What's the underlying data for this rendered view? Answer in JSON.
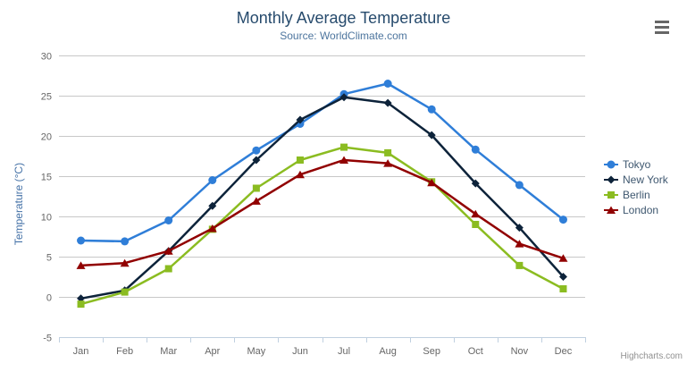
{
  "credits": "Highcharts.com",
  "chart_data": {
    "type": "line",
    "title": "Monthly Average Temperature",
    "subtitle": "Source: WorldClimate.com",
    "xlabel": "",
    "ylabel": "Temperature (°C)",
    "categories": [
      "Jan",
      "Feb",
      "Mar",
      "Apr",
      "May",
      "Jun",
      "Jul",
      "Aug",
      "Sep",
      "Oct",
      "Nov",
      "Dec"
    ],
    "series": [
      {
        "name": "Tokyo",
        "color": "#2f7ed8",
        "marker": "circle",
        "values": [
          7.0,
          6.9,
          9.5,
          14.5,
          18.2,
          21.5,
          25.2,
          26.5,
          23.3,
          18.3,
          13.9,
          9.6
        ]
      },
      {
        "name": "New York",
        "color": "#0d233a",
        "marker": "diamond",
        "values": [
          -0.2,
          0.8,
          5.7,
          11.3,
          17.0,
          22.0,
          24.8,
          24.1,
          20.1,
          14.1,
          8.6,
          2.5
        ]
      },
      {
        "name": "Berlin",
        "color": "#8bbc21",
        "marker": "square",
        "values": [
          -0.9,
          0.6,
          3.5,
          8.4,
          13.5,
          17.0,
          18.6,
          17.9,
          14.3,
          9.0,
          3.9,
          1.0
        ]
      },
      {
        "name": "London",
        "color": "#910000",
        "marker": "triangle",
        "values": [
          3.9,
          4.2,
          5.7,
          8.5,
          11.9,
          15.2,
          17.0,
          16.6,
          14.2,
          10.3,
          6.6,
          4.8
        ]
      }
    ],
    "ylim": [
      -5,
      30
    ],
    "ytick_interval": 5,
    "grid": true,
    "legend_position": "right",
    "colors": {
      "title": "#274b6d",
      "subtitle": "#4d759e",
      "axis_title": "#4572A7",
      "axis_labels": "#666666",
      "gridline": "#C8C8C8",
      "axis_line": "#C0D0E0",
      "legend_text": "#3E576F",
      "credits_text": "#909090"
    }
  }
}
